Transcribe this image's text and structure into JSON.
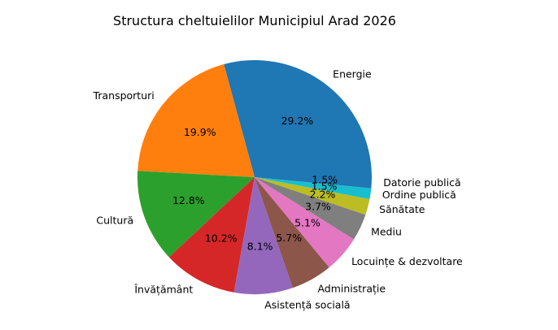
{
  "chart_data": {
    "type": "pie",
    "title": "Structura cheltuielilor Municipiul Arad 2026",
    "slices": [
      {
        "label": "Energie",
        "value": 29.2,
        "pct_label": "29.2%",
        "color": "#1f77b4"
      },
      {
        "label": "Transporturi",
        "value": 19.9,
        "pct_label": "19.9%",
        "color": "#ff7f0e"
      },
      {
        "label": "Cultură",
        "value": 12.8,
        "pct_label": "12.8%",
        "color": "#2ca02c"
      },
      {
        "label": "Învățământ",
        "value": 10.2,
        "pct_label": "10.2%",
        "color": "#d62728"
      },
      {
        "label": "Asistență socială",
        "value": 8.1,
        "pct_label": "8.1%",
        "color": "#9467bd"
      },
      {
        "label": "Administrație",
        "value": 5.7,
        "pct_label": "5.7%",
        "color": "#8c564b"
      },
      {
        "label": "Locuințe & dezvoltare",
        "value": 5.1,
        "pct_label": "5.1%",
        "color": "#e377c2"
      },
      {
        "label": "Mediu",
        "value": 3.7,
        "pct_label": "3.7%",
        "color": "#7f7f7f"
      },
      {
        "label": "Sănătate",
        "value": 2.2,
        "pct_label": "2.2%",
        "color": "#bcbd22"
      },
      {
        "label": "Ordine publică",
        "value": 1.5,
        "pct_label": "1.5%",
        "color": "#17becf"
      },
      {
        "label": "Datorie publică",
        "value": 1.5,
        "pct_label": "1.5%",
        "color": "#1f77b4"
      }
    ]
  }
}
